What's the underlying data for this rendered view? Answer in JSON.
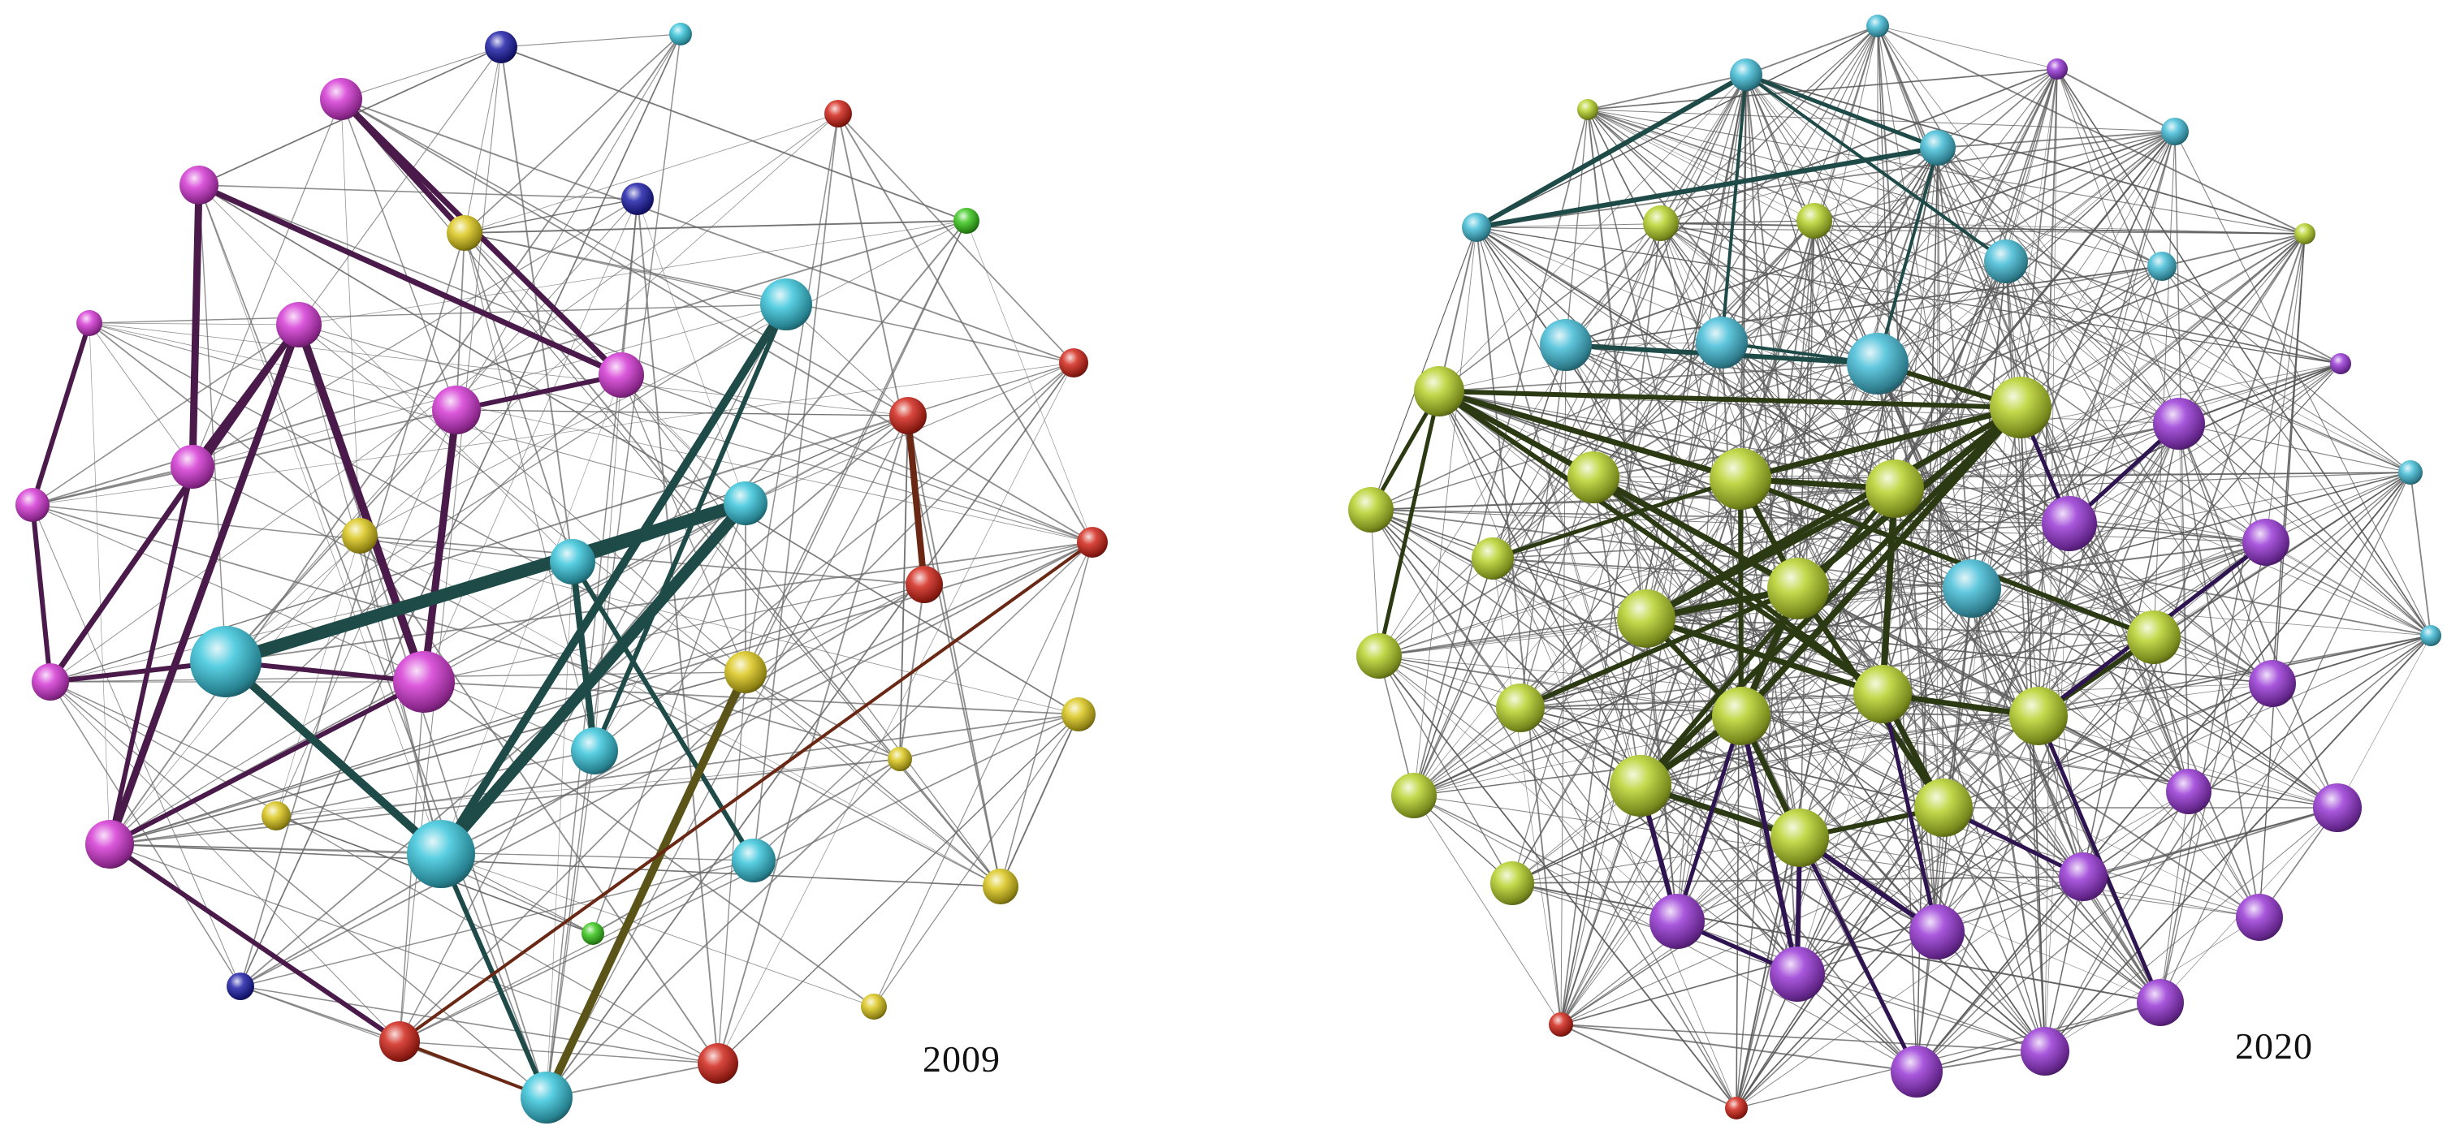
{
  "figure": {
    "panels": [
      {
        "id": "left",
        "year": "2009",
        "groups": {
          "magenta": "#d63cd6",
          "cyan": "#3cc6dc",
          "yellow": "#dcc81e",
          "red": "#d2281c",
          "blue": "#2222aa",
          "green": "#3cc81e"
        }
      },
      {
        "id": "right",
        "year": "2020",
        "groups": {
          "lime": "#b8d22c",
          "cyan": "#46bed8",
          "violet": "#9a3ad6",
          "red": "#d2281c"
        }
      }
    ]
  }
}
